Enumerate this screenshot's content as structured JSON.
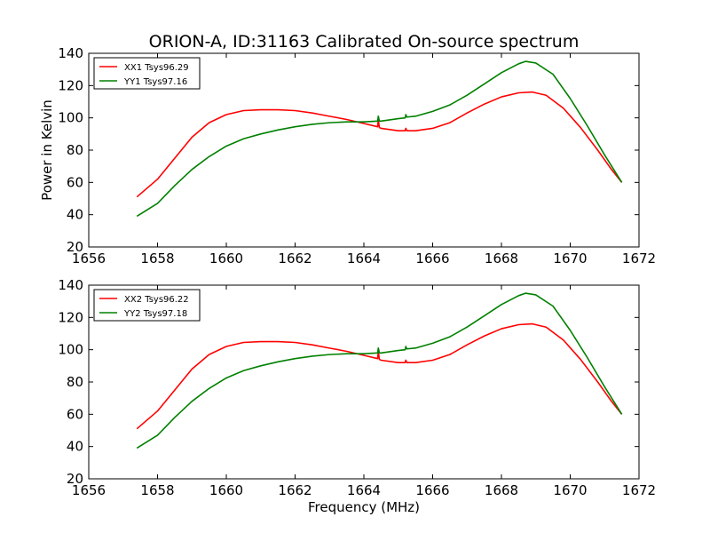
{
  "title": "ORION-A, ID:31163 Calibrated On-source spectrum",
  "colors": {
    "xx": "#ff0000",
    "yy": "#008000"
  },
  "chart_data": [
    {
      "type": "line",
      "title": "ORION-A, ID:31163 Calibrated On-source spectrum",
      "xlabel": "",
      "ylabel": "Power in Kelvin",
      "xlim": [
        1656,
        1672
      ],
      "ylim": [
        20,
        140
      ],
      "xticks": [
        1656,
        1658,
        1660,
        1662,
        1664,
        1666,
        1668,
        1670,
        1672
      ],
      "yticks": [
        20,
        40,
        60,
        80,
        100,
        120,
        140
      ],
      "grid": false,
      "legend": "top-left",
      "series": [
        {
          "name": "XX1 Tsys96.29",
          "color": "#ff0000",
          "x": [
            1657.4,
            1658.0,
            1658.5,
            1659.0,
            1659.5,
            1660.0,
            1660.5,
            1661.0,
            1661.5,
            1662.0,
            1662.5,
            1663.0,
            1663.5,
            1664.0,
            1664.4,
            1664.42,
            1664.45,
            1664.5,
            1665.0,
            1665.2,
            1665.22,
            1665.25,
            1665.5,
            1666.0,
            1666.5,
            1667.0,
            1667.5,
            1668.0,
            1668.5,
            1668.9,
            1669.3,
            1669.8,
            1670.3,
            1670.8,
            1671.2,
            1671.5
          ],
          "y": [
            51,
            62,
            75,
            88,
            97,
            102,
            104.5,
            105,
            105,
            104.5,
            103,
            101,
            99,
            96.5,
            94.5,
            99,
            94,
            93.5,
            92,
            92,
            93.5,
            92,
            92,
            93.5,
            97,
            103,
            108.5,
            113,
            115.5,
            116,
            114,
            106,
            94,
            80,
            68,
            60
          ]
        },
        {
          "name": "YY1 Tsys97.16",
          "color": "#008000",
          "x": [
            1657.4,
            1658.0,
            1658.5,
            1659.0,
            1659.5,
            1660.0,
            1660.5,
            1661.0,
            1661.5,
            1662.0,
            1662.5,
            1663.0,
            1663.5,
            1664.0,
            1664.4,
            1664.42,
            1664.45,
            1664.5,
            1665.0,
            1665.2,
            1665.22,
            1665.25,
            1665.5,
            1666.0,
            1666.5,
            1667.0,
            1667.5,
            1668.0,
            1668.5,
            1668.7,
            1669.0,
            1669.5,
            1670.0,
            1670.5,
            1671.0,
            1671.5
          ],
          "y": [
            39,
            47,
            58,
            68,
            76,
            82.5,
            87,
            90,
            92.5,
            94.5,
            96,
            97,
            97.5,
            97.5,
            98,
            101,
            98,
            98,
            99.5,
            100,
            102,
            100.5,
            101,
            104,
            108,
            114,
            121,
            128,
            133.5,
            135,
            134,
            127,
            112,
            95,
            77,
            60
          ]
        }
      ]
    },
    {
      "type": "line",
      "title": "",
      "xlabel": "Frequency (MHz)",
      "ylabel": "",
      "xlim": [
        1656,
        1672
      ],
      "ylim": [
        20,
        140
      ],
      "xticks": [
        1656,
        1658,
        1660,
        1662,
        1664,
        1666,
        1668,
        1670,
        1672
      ],
      "yticks": [
        20,
        40,
        60,
        80,
        100,
        120,
        140
      ],
      "grid": false,
      "legend": "top-left",
      "series": [
        {
          "name": "XX2 Tsys96.22",
          "color": "#ff0000",
          "x": [
            1657.4,
            1658.0,
            1658.5,
            1659.0,
            1659.5,
            1660.0,
            1660.5,
            1661.0,
            1661.5,
            1662.0,
            1662.5,
            1663.0,
            1663.5,
            1664.0,
            1664.4,
            1664.42,
            1664.45,
            1664.5,
            1665.0,
            1665.2,
            1665.22,
            1665.25,
            1665.5,
            1666.0,
            1666.5,
            1667.0,
            1667.5,
            1668.0,
            1668.5,
            1668.9,
            1669.3,
            1669.8,
            1670.3,
            1670.8,
            1671.2,
            1671.5
          ],
          "y": [
            51,
            62,
            75,
            88,
            97,
            102,
            104.5,
            105,
            105,
            104.5,
            103,
            101,
            99,
            96.5,
            94.5,
            99,
            94,
            93.5,
            92,
            92,
            93.5,
            92,
            92,
            93.5,
            97,
            103,
            108.5,
            113,
            115.5,
            116,
            114,
            106,
            94,
            80,
            68,
            60
          ]
        },
        {
          "name": "YY2 Tsys97.18",
          "color": "#008000",
          "x": [
            1657.4,
            1658.0,
            1658.5,
            1659.0,
            1659.5,
            1660.0,
            1660.5,
            1661.0,
            1661.5,
            1662.0,
            1662.5,
            1663.0,
            1663.5,
            1664.0,
            1664.4,
            1664.42,
            1664.45,
            1664.5,
            1665.0,
            1665.2,
            1665.22,
            1665.25,
            1665.5,
            1666.0,
            1666.5,
            1667.0,
            1667.5,
            1668.0,
            1668.5,
            1668.7,
            1669.0,
            1669.5,
            1670.0,
            1670.5,
            1671.0,
            1671.5
          ],
          "y": [
            39,
            47,
            58,
            68,
            76,
            82.5,
            87,
            90,
            92.5,
            94.5,
            96,
            97,
            97.5,
            97.5,
            98,
            101,
            98,
            98,
            99.5,
            100,
            102,
            100.5,
            101,
            104,
            108,
            114,
            121,
            128,
            133.5,
            135,
            134,
            127,
            112,
            95,
            77,
            60
          ]
        }
      ]
    }
  ]
}
